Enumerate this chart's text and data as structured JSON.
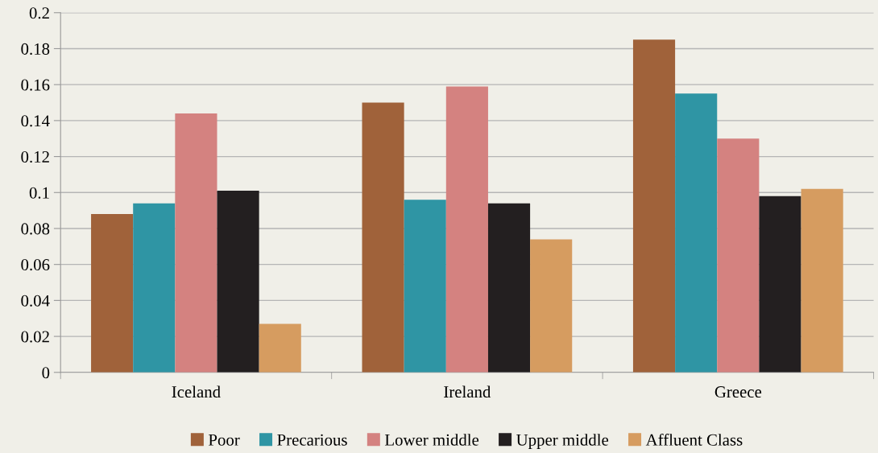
{
  "chart_data": {
    "type": "bar",
    "categories": [
      "Iceland",
      "Ireland",
      "Greece"
    ],
    "series": [
      {
        "name": "Poor",
        "color": "#a0623a",
        "values": [
          0.088,
          0.15,
          0.185
        ]
      },
      {
        "name": "Precarious",
        "color": "#2f95a4",
        "values": [
          0.094,
          0.096,
          0.155
        ]
      },
      {
        "name": "Lower middle",
        "color": "#d48280",
        "values": [
          0.144,
          0.159,
          0.13
        ]
      },
      {
        "name": "Upper middle",
        "color": "#231f20",
        "values": [
          0.101,
          0.094,
          0.098
        ]
      },
      {
        "name": "Affluent Class",
        "color": "#d69c60",
        "values": [
          0.027,
          0.074,
          0.102
        ]
      }
    ],
    "ylim": [
      0,
      0.2
    ],
    "yticks": [
      {
        "value": 0,
        "label": "0"
      },
      {
        "value": 0.02,
        "label": "0.02"
      },
      {
        "value": 0.04,
        "label": "0.04"
      },
      {
        "value": 0.06,
        "label": "0.06"
      },
      {
        "value": 0.08,
        "label": "0.08"
      },
      {
        "value": 0.1,
        "label": "0.1"
      },
      {
        "value": 0.12,
        "label": "0.12"
      },
      {
        "value": 0.14,
        "label": "0.14"
      },
      {
        "value": 0.16,
        "label": "0.16"
      },
      {
        "value": 0.18,
        "label": "0.18"
      },
      {
        "value": 0.2,
        "label": "0.2"
      }
    ],
    "grid": "y",
    "legend": "bottom"
  }
}
